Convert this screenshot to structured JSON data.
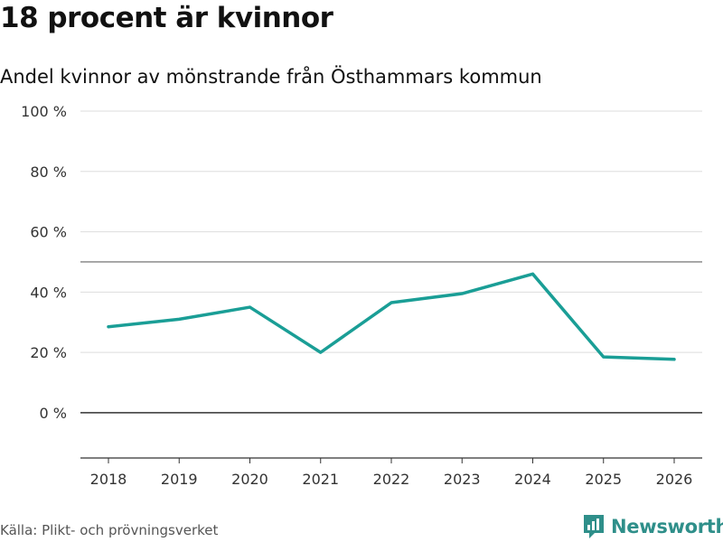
{
  "header": {
    "title": "18 procent är kvinnor",
    "subtitle": "Andel kvinnor av mönstrande från Östhammars kommun"
  },
  "footer": {
    "source": "Källa: Plikt- och prövningsverket",
    "brand": "Newsworthy",
    "logo_icon": "newsworthy-logo-icon"
  },
  "colors": {
    "line": "#1a9e96",
    "grid": "#dddddd",
    "zero_line": "#333333",
    "ref_line": "#666666",
    "brand": "#2f8f8a"
  },
  "chart_data": {
    "type": "line",
    "title": "18 procent är kvinnor",
    "subtitle": "Andel kvinnor av mönstrande från Östhammars kommun",
    "xlabel": "",
    "ylabel": "",
    "categories": [
      "2018",
      "2019",
      "2020",
      "2021",
      "2022",
      "2023",
      "2024",
      "2025",
      "2026"
    ],
    "series": [
      {
        "name": "Andel kvinnor",
        "values": [
          28.5,
          31,
          35,
          20,
          36.5,
          39.5,
          46,
          18.5,
          17.7
        ]
      }
    ],
    "ylim": [
      -15,
      100
    ],
    "yticks": [
      0,
      20,
      40,
      60,
      80,
      100
    ],
    "ytick_labels": [
      "0 %",
      "20 %",
      "40 %",
      "60 %",
      "80 %",
      "100 %"
    ],
    "reference_line": 50,
    "grid": true,
    "legend": "none"
  }
}
